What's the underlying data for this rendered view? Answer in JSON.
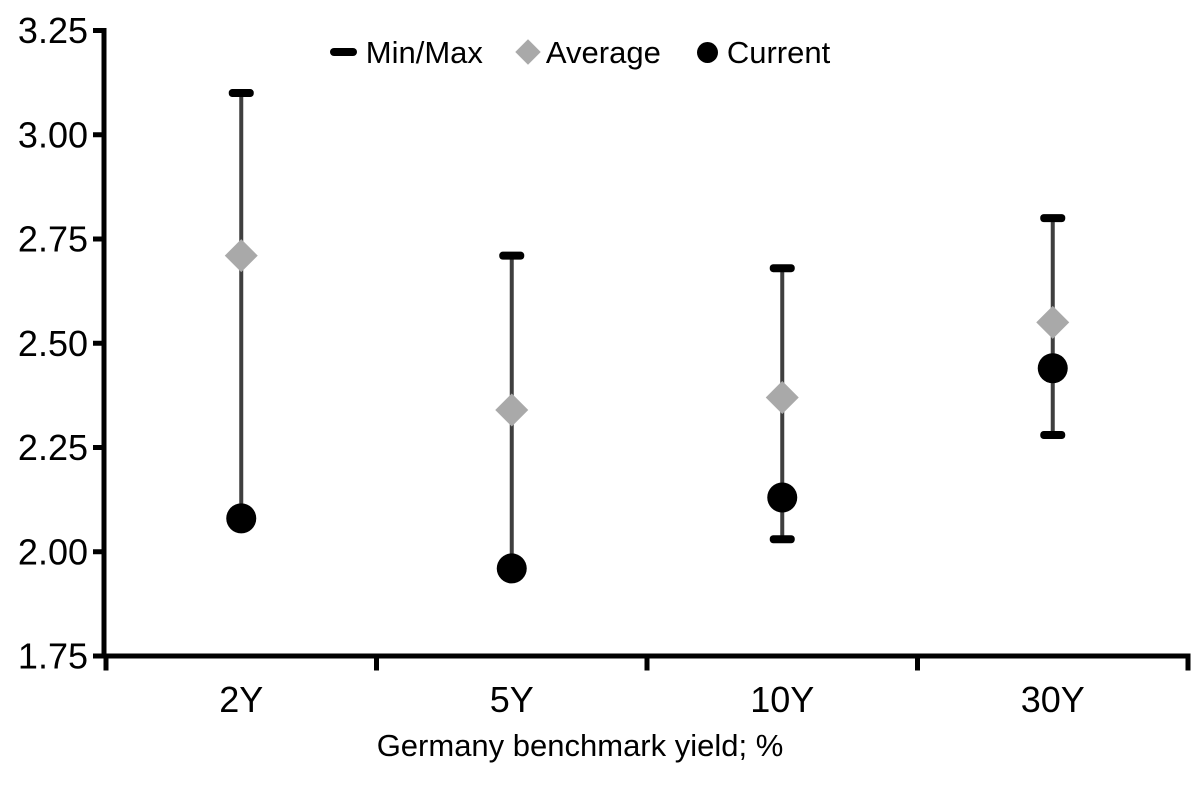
{
  "chart_data": {
    "type": "scatter",
    "title": "",
    "xlabel": "Germany benchmark yield; %",
    "ylabel": "",
    "categories": [
      "2Y",
      "5Y",
      "10Y",
      "30Y"
    ],
    "ylim": [
      1.75,
      3.25
    ],
    "ytick_step": 0.25,
    "ytick_labels": [
      "1.75",
      "2.00",
      "2.25",
      "2.50",
      "2.75",
      "3.00",
      "3.25"
    ],
    "grid": false,
    "legend_position": "top-center",
    "series": [
      {
        "name": "Min/Max",
        "render": "range",
        "marker": "dash",
        "max": [
          3.1,
          2.71,
          2.68,
          2.8
        ],
        "min": [
          2.08,
          1.96,
          2.03,
          2.28
        ]
      },
      {
        "name": "Average",
        "render": "point",
        "marker": "diamond",
        "values": [
          2.71,
          2.34,
          2.37,
          2.55
        ]
      },
      {
        "name": "Current",
        "render": "point",
        "marker": "circle",
        "values": [
          2.08,
          1.96,
          2.13,
          2.44
        ]
      }
    ],
    "colors": {
      "minmax_cap": "#000000",
      "range_line": "#3f3f3f",
      "average": "#a9a9a9",
      "current": "#000000",
      "axis": "#000000",
      "text": "#000000"
    }
  }
}
